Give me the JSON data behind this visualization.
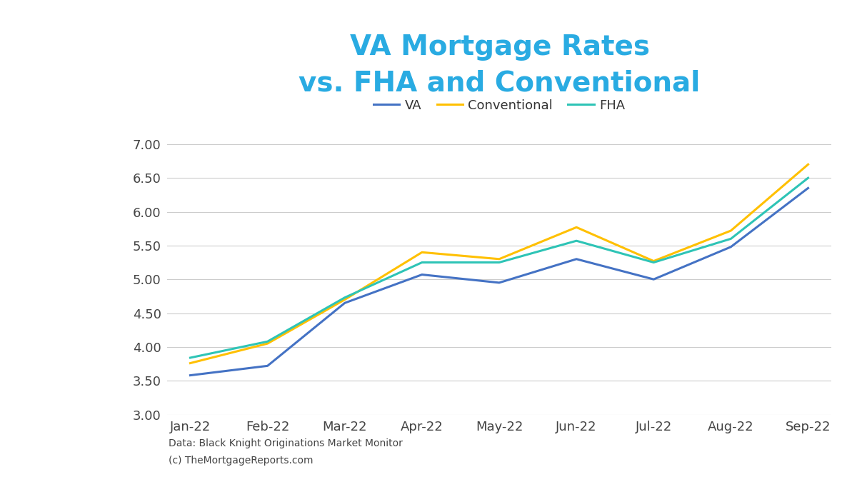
{
  "title_line1": "VA Mortgage Rates",
  "title_line2": "vs. FHA and Conventional",
  "title_color": "#29ABE2",
  "months": [
    "Jan-22",
    "Feb-22",
    "Mar-22",
    "Apr-22",
    "May-22",
    "Jun-22",
    "Jul-22",
    "Aug-22",
    "Sep-22"
  ],
  "va": [
    3.58,
    3.72,
    4.65,
    5.07,
    4.95,
    5.3,
    5.0,
    5.48,
    6.35
  ],
  "conventional": [
    3.76,
    4.05,
    4.7,
    5.4,
    5.3,
    5.77,
    5.27,
    5.72,
    6.7
  ],
  "fha": [
    3.84,
    4.08,
    4.73,
    5.25,
    5.25,
    5.57,
    5.25,
    5.6,
    6.5
  ],
  "va_color": "#4472C4",
  "conventional_color": "#FFC000",
  "fha_color": "#2EC4B6",
  "ylim_min": 3.0,
  "ylim_max": 7.1,
  "yticks": [
    3.0,
    3.5,
    4.0,
    4.5,
    5.0,
    5.5,
    6.0,
    6.5,
    7.0
  ],
  "line_width": 2.2,
  "background_color": "#FFFFFF",
  "plot_bg_color": "#FFFFFF",
  "grid_color": "#CCCCCC",
  "footnote_line1": "Data: Black Knight Originations Market Monitor",
  "footnote_line2": "(c) TheMortgageReports.com",
  "footnote_color": "#444444",
  "footnote_size": 10,
  "tick_fontsize": 13,
  "legend_fontsize": 13,
  "title_fontsize": 28
}
